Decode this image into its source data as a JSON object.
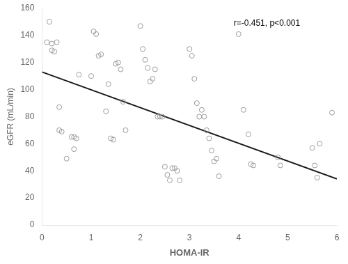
{
  "chart_data": {
    "type": "scatter",
    "series": [
      {
        "type": "scatter",
        "marker": "circle",
        "color": "#999999",
        "x": [
          0.1,
          0.15,
          0.2,
          0.2,
          0.25,
          0.3,
          0.35,
          0.35,
          0.4,
          0.5,
          0.6,
          0.65,
          0.65,
          0.7,
          0.75,
          1.0,
          1.05,
          1.1,
          1.15,
          1.2,
          1.3,
          1.35,
          1.4,
          1.45,
          1.5,
          1.55,
          1.6,
          1.65,
          1.7,
          2.0,
          2.05,
          2.1,
          2.15,
          2.2,
          2.25,
          2.3,
          2.35,
          2.4,
          2.45,
          2.5,
          2.55,
          2.6,
          2.65,
          2.7,
          2.75,
          2.8,
          3.0,
          3.05,
          3.1,
          3.15,
          3.2,
          3.25,
          3.3,
          3.35,
          3.4,
          3.45,
          3.5,
          3.55,
          3.6,
          4.0,
          4.1,
          4.2,
          4.25,
          4.3,
          4.8,
          4.85,
          5.5,
          5.55,
          5.6,
          5.65,
          5.9
        ],
        "values": [
          135,
          150,
          134,
          129,
          128,
          135,
          70,
          87,
          69,
          49,
          65,
          65,
          56,
          64,
          111,
          110,
          143,
          141,
          125,
          126,
          84,
          104,
          64,
          63,
          119,
          120,
          115,
          91,
          70,
          147,
          130,
          122,
          116,
          106,
          108,
          115,
          80,
          80,
          80,
          43,
          37,
          33,
          42,
          42,
          40,
          33,
          130,
          125,
          108,
          90,
          80,
          85,
          80,
          70,
          64,
          55,
          47,
          49,
          36,
          141,
          85,
          67,
          45,
          44,
          50,
          44,
          57,
          44,
          35,
          60,
          83
        ]
      },
      {
        "type": "line",
        "line_style": "solid",
        "color": "#1a1a1a",
        "x": [
          0,
          6
        ],
        "values": [
          113,
          34
        ]
      }
    ],
    "annotations": [
      {
        "text": "r=-0.451, p<0.001",
        "x": 3.9,
        "y": 152
      }
    ],
    "x_label": "HOMA-IR",
    "y_label": "eGFR (mL/min)",
    "xlim": [
      0,
      6
    ],
    "ylim": [
      0,
      160
    ],
    "xticks": [
      0,
      1,
      2,
      3,
      4,
      5,
      6
    ],
    "yticks": [
      0,
      20,
      40,
      60,
      80,
      100,
      120,
      140,
      160
    ],
    "grid": false,
    "legend": false
  }
}
